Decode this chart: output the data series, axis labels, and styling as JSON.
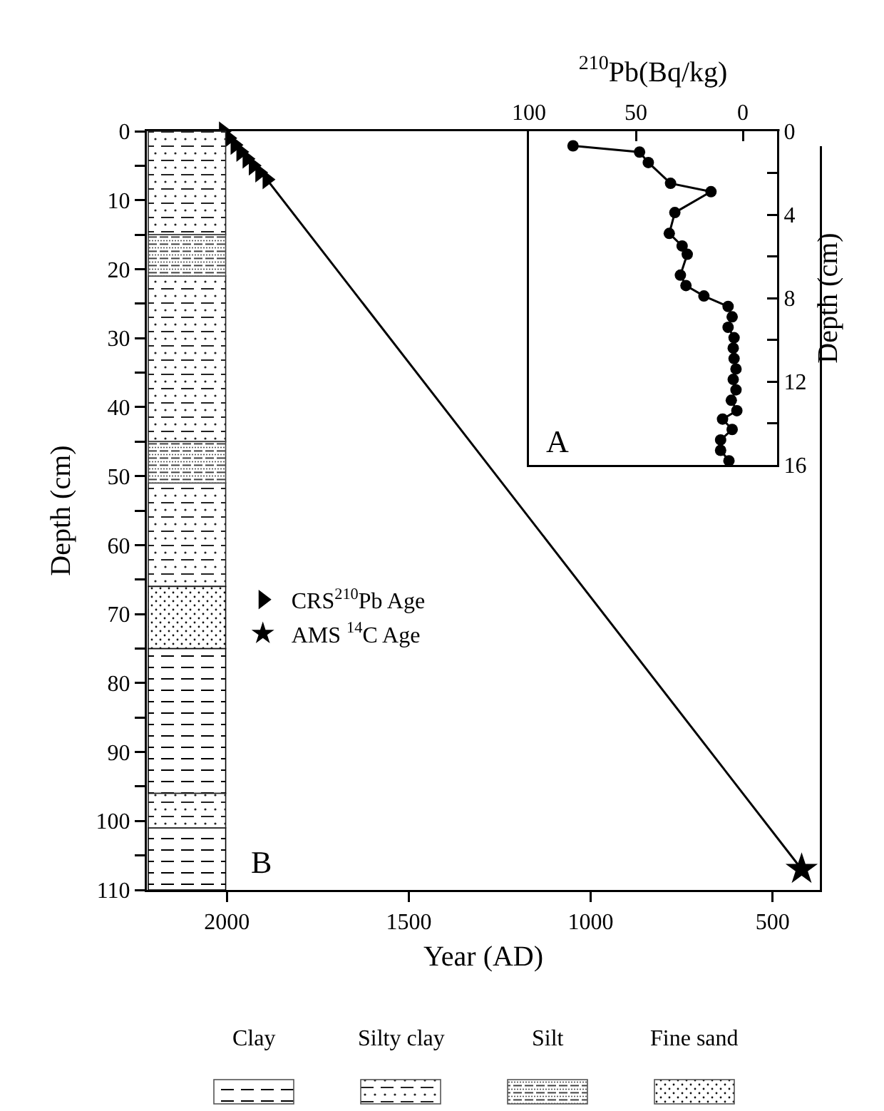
{
  "chart_data": [
    {
      "type": "line",
      "xlabel": "$^{210}$Pb(Bq/kg)",
      "ylabel": "Depth (cm)",
      "annotations": [
        "A"
      ],
      "x": [
        79.4,
        48.3,
        44.2,
        33.8,
        14.9,
        31.8,
        34.4,
        28.4,
        26.0,
        29.2,
        26.6,
        18.2,
        6.9,
        5.0,
        6.9,
        4.1,
        4.5,
        4.1,
        3.2,
        4.5,
        3.2,
        5.4,
        2.8,
        9.5,
        5.0,
        10.4,
        10.4,
        6.5
      ],
      "series": [
        {
          "color": "#000000",
          "values": [
            0.7,
            1.0,
            1.5,
            2.5,
            2.9,
            3.9,
            4.9,
            5.5,
            5.9,
            6.9,
            7.4,
            7.9,
            8.4,
            8.9,
            9.4,
            9.9,
            10.4,
            10.9,
            11.4,
            11.9,
            12.4,
            12.9,
            13.4,
            13.8,
            14.3,
            14.8,
            15.3,
            15.8
          ]
        }
      ],
      "xlim": [
        100,
        -16
      ],
      "xticks": [
        100,
        50,
        0
      ],
      "ylim": [
        16,
        0
      ],
      "yticks": [
        0,
        {
          "value": 2,
          "label": null
        },
        4,
        {
          "value": 6,
          "label": null
        },
        8,
        {
          "value": 10,
          "label": null
        },
        12,
        {
          "value": 14,
          "label": null
        },
        16
      ],
      "marker": "circle",
      "line_style": "solid"
    },
    {
      "type": "line",
      "xlabel": "Year (AD)",
      "ylabel": "Depth (cm)",
      "annotations": [
        "B",
        "Clay",
        "Silty clay",
        "Silt",
        "Fine sand"
      ],
      "series": [
        {
          "type": "line",
          "color": "#000000",
          "marker": "none",
          "x": [
            2010,
            1995,
            1978,
            1962,
            1945,
            1928,
            1910,
            1890,
            420
          ],
          "values": [
            0,
            1,
            2,
            3,
            4,
            5,
            6,
            7,
            107
          ]
        },
        {
          "type": "scatter",
          "name": "CRS$^{210}$Pb Age",
          "color": "#000000",
          "marker": "triangle",
          "x": [
            2010,
            1995,
            1978,
            1962,
            1945,
            1928,
            1910,
            1890
          ],
          "values": [
            0,
            1,
            2,
            3,
            4,
            5,
            6,
            7
          ]
        },
        {
          "type": "scatter",
          "name": "AMS $^{14}$C Age",
          "color": "#000000",
          "marker": "star",
          "x": [
            420
          ],
          "values": [
            107
          ]
        }
      ],
      "xlim": [
        2220,
        370
      ],
      "xticks": [
        2000,
        1500,
        1000,
        500
      ],
      "ylim": [
        110,
        0
      ],
      "yticks": [
        0,
        {
          "value": 5,
          "label": null
        },
        10,
        {
          "value": 15,
          "label": null
        },
        20,
        {
          "value": 25,
          "label": null
        },
        30,
        {
          "value": 35,
          "label": null
        },
        40,
        {
          "value": 45,
          "label": null
        },
        50,
        {
          "value": 55,
          "label": null
        },
        60,
        {
          "value": 65,
          "label": null
        },
        70,
        {
          "value": 75,
          "label": null
        },
        80,
        {
          "value": 85,
          "label": null
        },
        90,
        {
          "value": 95,
          "label": null
        },
        100,
        {
          "value": 105,
          "label": null
        },
        110
      ],
      "bands": [
        {
          "axis": "y",
          "from": 75,
          "to": 96,
          "color": "#000000"
        },
        {
          "axis": "y",
          "from": 101,
          "to": 110,
          "color": "#000000"
        },
        {
          "axis": "y",
          "from": 0,
          "to": 15,
          "color": "#222222"
        },
        {
          "axis": "y",
          "from": 21,
          "to": 45,
          "color": "#222222"
        },
        {
          "axis": "y",
          "from": 51,
          "to": 66,
          "color": "#222222"
        },
        {
          "axis": "y",
          "from": 96,
          "to": 101,
          "color": "#222222"
        },
        {
          "axis": "y",
          "from": 15,
          "to": 21,
          "color": "#444444"
        },
        {
          "axis": "y",
          "from": 45,
          "to": 51,
          "color": "#444444"
        },
        {
          "axis": "y",
          "from": 66,
          "to": 75,
          "color": "#111111"
        }
      ],
      "legend": "left"
    }
  ]
}
